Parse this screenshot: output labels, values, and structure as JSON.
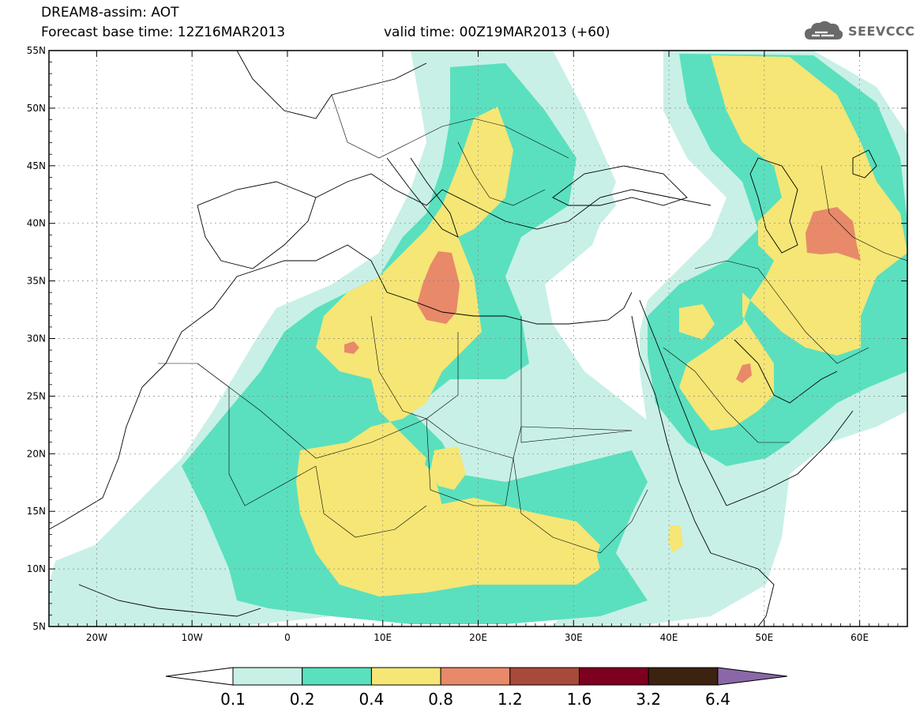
{
  "header": {
    "line1": "DREAM8-assim: AOT",
    "line2": "Forecast base time: 12Z16MAR2013",
    "valid": "valid time: 00Z19MAR2013 (+60)",
    "logo_text": "SEEVCCC",
    "logo_icon": "cloud-icon"
  },
  "map": {
    "lon_range": [
      -25,
      65
    ],
    "lat_range": [
      5,
      55
    ],
    "lat_labels": [
      "5N",
      "10N",
      "15N",
      "20N",
      "25N",
      "30N",
      "35N",
      "40N",
      "45N",
      "50N",
      "55N"
    ],
    "lon_labels": [
      "20W",
      "10W",
      "0",
      "10E",
      "20E",
      "30E",
      "40E",
      "50E",
      "60E"
    ],
    "grid": true
  },
  "colorbar": {
    "labels": [
      "0.1",
      "0.2",
      "0.4",
      "0.8",
      "1.2",
      "1.6",
      "3.2",
      "6.4"
    ],
    "colors": [
      "#ffffff",
      "#c8f0e6",
      "#5ae0be",
      "#f5e676",
      "#e8896a",
      "#a84a3a",
      "#7d0020",
      "#3c2210",
      "#8a68a8"
    ]
  }
}
